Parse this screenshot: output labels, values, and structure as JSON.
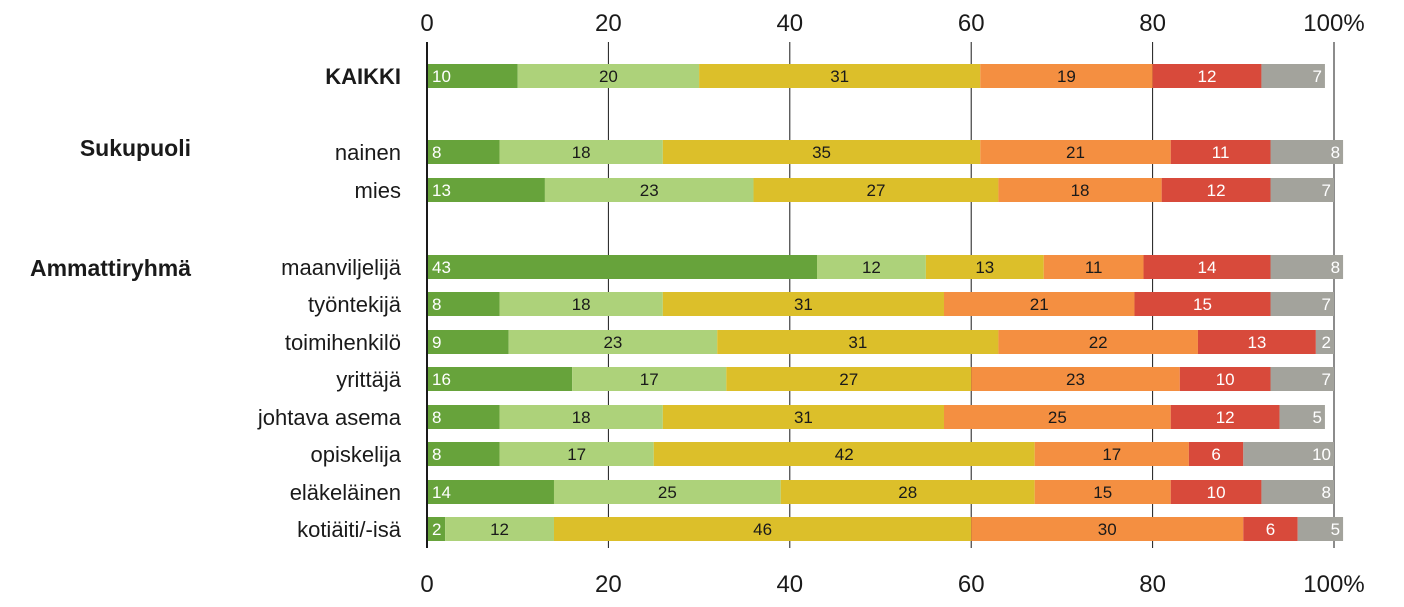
{
  "chart_data": {
    "type": "bar",
    "orientation": "horizontal",
    "stacked": true,
    "xlim": [
      0,
      100
    ],
    "x_ticks": [
      "0",
      "20",
      "40",
      "60",
      "80",
      "100%"
    ],
    "grid": true,
    "colors": [
      "#67a33b",
      "#add27a",
      "#dcbf2a",
      "#f48f41",
      "#d84a3b",
      "#a3a39c"
    ],
    "groups": [
      {
        "label": "",
        "rows": [
          {
            "label": "KAIKKI",
            "bold": true,
            "values": [
              10,
              20,
              31,
              19,
              12,
              7
            ]
          }
        ]
      },
      {
        "label": "Sukupuoli",
        "rows": [
          {
            "label": "nainen",
            "values": [
              8,
              18,
              35,
              21,
              11,
              8
            ]
          },
          {
            "label": "mies",
            "values": [
              13,
              23,
              27,
              18,
              12,
              7
            ]
          }
        ]
      },
      {
        "label": "Ammattiryhmä",
        "rows": [
          {
            "label": "maanviljelijä",
            "values": [
              43,
              12,
              13,
              11,
              14,
              8
            ]
          },
          {
            "label": "työntekijä",
            "values": [
              8,
              18,
              31,
              21,
              15,
              7
            ]
          },
          {
            "label": "toimihenkilö",
            "values": [
              9,
              23,
              31,
              22,
              13,
              2
            ]
          },
          {
            "label": "yrittäjä",
            "values": [
              16,
              17,
              27,
              23,
              10,
              7
            ]
          },
          {
            "label": "johtava asema",
            "values": [
              8,
              18,
              31,
              25,
              12,
              5
            ]
          },
          {
            "label": "opiskelija",
            "values": [
              8,
              17,
              42,
              17,
              6,
              10
            ]
          },
          {
            "label": "eläkeläinen",
            "values": [
              14,
              25,
              28,
              15,
              10,
              8
            ]
          },
          {
            "label": "kotiäiti/-isä",
            "values": [
              2,
              12,
              46,
              30,
              6,
              5
            ]
          }
        ]
      }
    ]
  }
}
